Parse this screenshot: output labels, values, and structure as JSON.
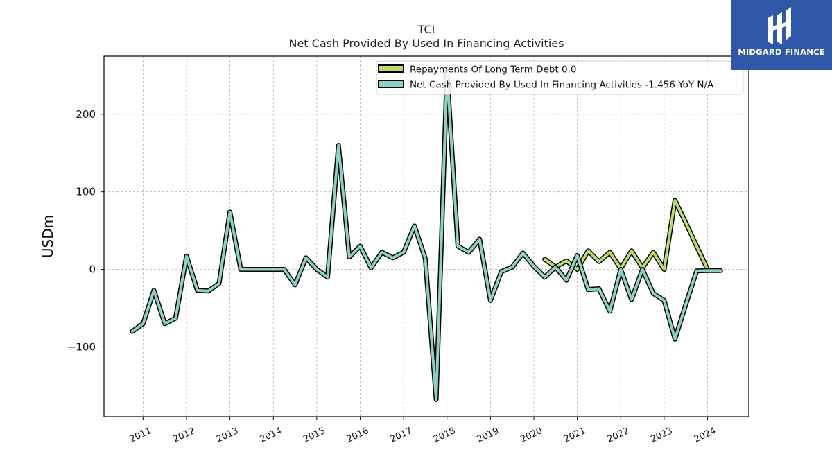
{
  "brand": {
    "name": "MIDGARD FINANCE",
    "icon": "midgard-logo-icon",
    "color": "#2f58a8"
  },
  "chart_data": {
    "type": "line",
    "title": "TCI",
    "subtitle": "Net Cash Provided By Used In Financing Activities",
    "ylabel": "USDm",
    "xlabel": "",
    "ylim": [
      -190,
      275
    ],
    "xlim": [
      2010.1,
      2024.95
    ],
    "yticks": [
      -100,
      0,
      100,
      200
    ],
    "ytick_labels": [
      "−100",
      "0",
      "100",
      "200"
    ],
    "xticks": [
      2011,
      2012,
      2013,
      2014,
      2015,
      2016,
      2017,
      2018,
      2019,
      2020,
      2021,
      2022,
      2023,
      2024
    ],
    "grid": true,
    "legend_position": "top-right",
    "series": [
      {
        "name": "Repayments Of Long Term Debt",
        "legend_label": "Repayments Of Long Term Debt  0.0",
        "color": "#b5dc6c",
        "x": [
          2020.25,
          2020.5,
          2020.75,
          2021.0,
          2021.25,
          2021.5,
          2021.75,
          2022.0,
          2022.25,
          2022.5,
          2022.75,
          2023.0,
          2023.25,
          2023.5,
          2023.75,
          2024.0
        ],
        "values": [
          13,
          3,
          11,
          0,
          24,
          10,
          22,
          1,
          24,
          2,
          22,
          0,
          89,
          60,
          30,
          0
        ]
      },
      {
        "name": "Net Cash Provided By Used In Financing Activities",
        "legend_label": "Net Cash Provided By Used In Financing Activities  -1.456 YoY N/A",
        "color": "#8ecfc4",
        "x": [
          2010.75,
          2011.0,
          2011.25,
          2011.5,
          2011.75,
          2012.0,
          2012.25,
          2012.5,
          2012.75,
          2013.0,
          2013.25,
          2013.5,
          2013.75,
          2014.0,
          2014.25,
          2014.5,
          2014.75,
          2015.0,
          2015.25,
          2015.5,
          2015.75,
          2016.0,
          2016.25,
          2016.5,
          2016.75,
          2017.0,
          2017.25,
          2017.5,
          2017.75,
          2018.0,
          2018.25,
          2018.5,
          2018.75,
          2019.0,
          2019.25,
          2019.5,
          2019.75,
          2020.0,
          2020.25,
          2020.5,
          2020.75,
          2021.0,
          2021.25,
          2021.5,
          2021.75,
          2022.0,
          2022.25,
          2022.5,
          2022.75,
          2023.0,
          2023.25,
          2023.5,
          2023.75,
          2024.0,
          2024.3
        ],
        "values": [
          -80,
          -70,
          -27,
          -70,
          -63,
          17,
          -27,
          -28,
          -18,
          74,
          0,
          0,
          0,
          0,
          0,
          -20,
          15,
          0,
          -10,
          160,
          16,
          30,
          2,
          22,
          15,
          22,
          56,
          14,
          -168,
          255,
          30,
          22,
          39,
          -40,
          -3,
          3,
          21,
          4,
          -10,
          3,
          -14,
          18,
          -26,
          -25,
          -54,
          0,
          -39,
          0,
          -31,
          -40,
          -90,
          -45,
          -2,
          -1.5,
          -1.456
        ]
      }
    ]
  }
}
